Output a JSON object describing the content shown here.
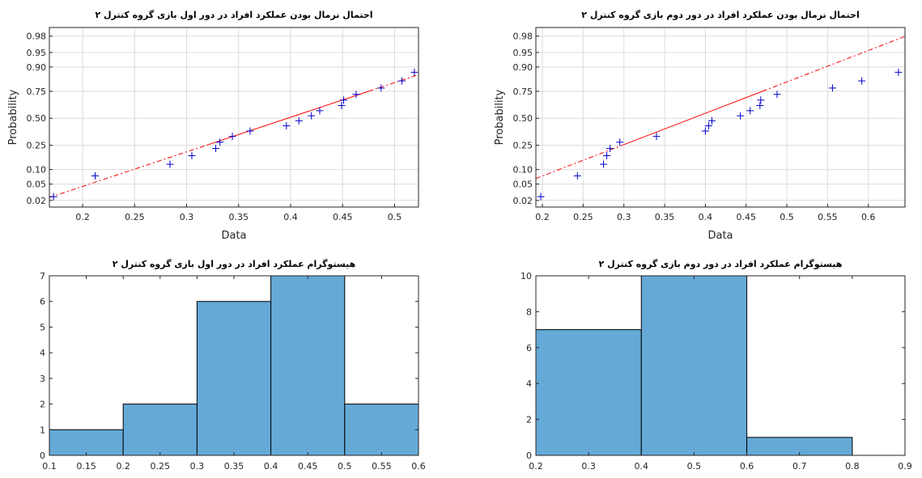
{
  "chart_data": [
    {
      "type": "scatter",
      "subtype": "normal-probability-plot",
      "title": "احتمال نرمال بودن عملکرد افراد در دور اول بازی گروه کنترل ۲",
      "xlabel": "Data",
      "ylabel": "Probability",
      "xlim": [
        0.168,
        0.523
      ],
      "xticks": [
        "0.2",
        "0.25",
        "0.3",
        "0.35",
        "0.4",
        "0.45",
        "0.5"
      ],
      "yticks": [
        "0.02",
        "0.05",
        "0.10",
        "0.25",
        "0.50",
        "0.75",
        "0.90",
        "0.95",
        "0.98"
      ],
      "grid": true,
      "marker": "+",
      "marker_color": "#0000cc",
      "fit_color": "#ff0000",
      "points": [
        {
          "x": 0.172,
          "p": 0.025
        },
        {
          "x": 0.212,
          "p": 0.075
        },
        {
          "x": 0.284,
          "p": 0.125
        },
        {
          "x": 0.305,
          "p": 0.175
        },
        {
          "x": 0.328,
          "p": 0.225
        },
        {
          "x": 0.332,
          "p": 0.275
        },
        {
          "x": 0.344,
          "p": 0.325
        },
        {
          "x": 0.361,
          "p": 0.375
        },
        {
          "x": 0.396,
          "p": 0.425
        },
        {
          "x": 0.408,
          "p": 0.475
        },
        {
          "x": 0.42,
          "p": 0.525
        },
        {
          "x": 0.428,
          "p": 0.575
        },
        {
          "x": 0.449,
          "p": 0.625
        },
        {
          "x": 0.451,
          "p": 0.675
        },
        {
          "x": 0.463,
          "p": 0.725
        },
        {
          "x": 0.487,
          "p": 0.775
        },
        {
          "x": 0.507,
          "p": 0.825
        },
        {
          "x": 0.519,
          "p": 0.875
        }
      ],
      "fit_line": {
        "x_at_p025": 0.319,
        "x_at_p075": 0.475
      }
    },
    {
      "type": "scatter",
      "subtype": "normal-probability-plot",
      "title": "احتمال نرمال بودن عملکرد افراد در دور دوم بازی گروه کنترل ۲",
      "xlabel": "Data",
      "ylabel": "Probability",
      "xlim": [
        0.192,
        0.645
      ],
      "xticks": [
        "0.2",
        "0.25",
        "0.3",
        "0.35",
        "0.4",
        "0.45",
        "0.5",
        "0.55",
        "0.6"
      ],
      "yticks": [
        "0.02",
        "0.05",
        "0.10",
        "0.25",
        "0.50",
        "0.75",
        "0.90",
        "0.95",
        "0.98"
      ],
      "grid": true,
      "marker": "+",
      "marker_color": "#0000cc",
      "fit_color": "#ff0000",
      "points": [
        {
          "x": 0.198,
          "p": 0.025
        },
        {
          "x": 0.243,
          "p": 0.075
        },
        {
          "x": 0.275,
          "p": 0.125
        },
        {
          "x": 0.279,
          "p": 0.175
        },
        {
          "x": 0.283,
          "p": 0.225
        },
        {
          "x": 0.295,
          "p": 0.275
        },
        {
          "x": 0.34,
          "p": 0.325
        },
        {
          "x": 0.4,
          "p": 0.375
        },
        {
          "x": 0.404,
          "p": 0.425
        },
        {
          "x": 0.408,
          "p": 0.475
        },
        {
          "x": 0.443,
          "p": 0.525
        },
        {
          "x": 0.455,
          "p": 0.575
        },
        {
          "x": 0.467,
          "p": 0.625
        },
        {
          "x": 0.468,
          "p": 0.675
        },
        {
          "x": 0.488,
          "p": 0.725
        },
        {
          "x": 0.556,
          "p": 0.775
        },
        {
          "x": 0.592,
          "p": 0.825
        },
        {
          "x": 0.637,
          "p": 0.875
        }
      ],
      "fit_line": {
        "x_at_p025": 0.298,
        "x_at_p075": 0.47
      }
    },
    {
      "type": "bar",
      "subtype": "histogram",
      "title": "هیستوگرام عملکرد افراد در دور اول بازی گروه کنترل ۲",
      "xlim": [
        0.1,
        0.6
      ],
      "ylim": [
        0,
        7
      ],
      "xticks": [
        "0.1",
        "0.15",
        "0.2",
        "0.25",
        "0.3",
        "0.35",
        "0.4",
        "0.45",
        "0.5",
        "0.55",
        "0.6"
      ],
      "yticks": [
        "0",
        "1",
        "2",
        "3",
        "4",
        "5",
        "6",
        "7"
      ],
      "bar_color": "#65a9d7",
      "bins": [
        {
          "from": 0.1,
          "to": 0.2,
          "count": 1
        },
        {
          "from": 0.2,
          "to": 0.3,
          "count": 2
        },
        {
          "from": 0.3,
          "to": 0.4,
          "count": 6
        },
        {
          "from": 0.4,
          "to": 0.5,
          "count": 7
        },
        {
          "from": 0.5,
          "to": 0.6,
          "count": 2
        }
      ]
    },
    {
      "type": "bar",
      "subtype": "histogram",
      "title": "هیستوگرام عملکرد افراد در دور دوم بازی گروه کنترل ۲",
      "xlim": [
        0.2,
        0.9
      ],
      "ylim": [
        0,
        10
      ],
      "xticks": [
        "0.2",
        "0.3",
        "0.4",
        "0.5",
        "0.6",
        "0.7",
        "0.8",
        "0.9"
      ],
      "yticks": [
        "0",
        "2",
        "4",
        "6",
        "8",
        "10"
      ],
      "bar_color": "#65a9d7",
      "bins": [
        {
          "from": 0.2,
          "to": 0.4,
          "count": 7
        },
        {
          "from": 0.4,
          "to": 0.6,
          "count": 10
        },
        {
          "from": 0.6,
          "to": 0.8,
          "count": 1
        }
      ]
    }
  ]
}
